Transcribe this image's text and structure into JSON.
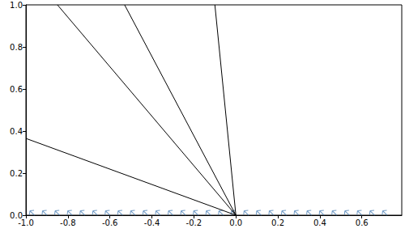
{
  "chart_data": {
    "type": "line",
    "xlim": [
      -1.0,
      0.79
    ],
    "ylim": [
      0.0,
      1.0
    ],
    "xticks": [
      {
        "value": -1.0,
        "label": "-1.0"
      },
      -0.8,
      -0.6,
      -0.4,
      -0.2,
      {
        "value": 0.0,
        "label": "0.0"
      },
      0.2,
      0.4,
      0.6
    ],
    "yticks": [
      {
        "value": 0.0,
        "label": "0.0"
      },
      0.2,
      0.4,
      0.6,
      0.8,
      {
        "value": 1.0,
        "label": "1.0"
      }
    ],
    "grid": false,
    "series": [
      {
        "type": "line",
        "color": "#000000",
        "x": [
          0.0,
          -1.0
        ],
        "values": [
          0.0,
          0.365
        ]
      },
      {
        "type": "line",
        "color": "#000000",
        "x": [
          0.0,
          -0.85
        ],
        "values": [
          0.0,
          1.0
        ]
      },
      {
        "type": "line",
        "color": "#000000",
        "x": [
          0.0,
          -0.53
        ],
        "values": [
          0.0,
          1.0
        ]
      },
      {
        "type": "line",
        "color": "#000000",
        "x": [
          0.0,
          -0.1
        ],
        "values": [
          0.0,
          1.0
        ]
      },
      {
        "type": "scatter",
        "marker": "arrow",
        "color": "#4a7fb5",
        "x": [
          -0.97,
          -0.91,
          -0.85,
          -0.79,
          -0.73,
          -0.67,
          -0.61,
          -0.55,
          -0.49,
          -0.43,
          -0.37,
          -0.31,
          -0.25,
          -0.19,
          -0.13,
          -0.07,
          -0.01,
          0.05,
          0.11,
          0.17,
          0.23,
          0.29,
          0.35,
          0.41,
          0.47,
          0.53,
          0.59,
          0.65,
          0.71
        ],
        "values": [
          0.01,
          0.01,
          0.01,
          0.01,
          0.01,
          0.01,
          0.01,
          0.01,
          0.01,
          0.01,
          0.01,
          0.01,
          0.01,
          0.01,
          0.01,
          0.01,
          0.01,
          0.01,
          0.01,
          0.01,
          0.01,
          0.01,
          0.01,
          0.01,
          0.01,
          0.01,
          0.01,
          0.01,
          0.01
        ]
      }
    ]
  }
}
